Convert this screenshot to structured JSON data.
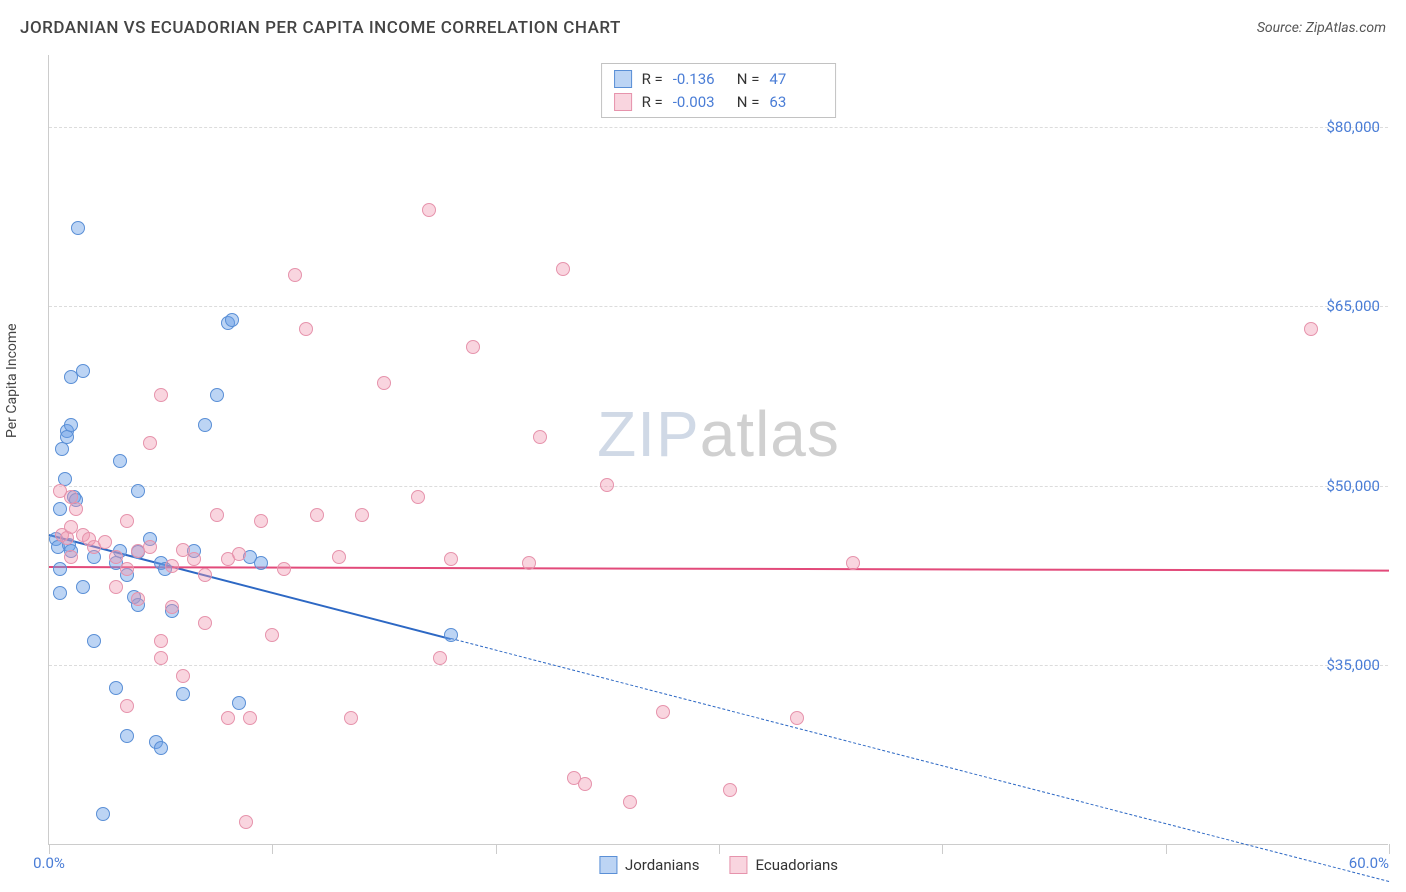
{
  "title": "JORDANIAN VS ECUADORIAN PER CAPITA INCOME CORRELATION CHART",
  "source_label": "Source: ZipAtlas.com",
  "yaxis": {
    "title": "Per Capita Income",
    "min": 20000,
    "max": 86000,
    "ticks": [
      {
        "v": 80000,
        "label": "$80,000"
      },
      {
        "v": 65000,
        "label": "$65,000"
      },
      {
        "v": 50000,
        "label": "$50,000"
      },
      {
        "v": 35000,
        "label": "$35,000"
      }
    ],
    "grid_color": "#dcdcdc"
  },
  "xaxis": {
    "min": 0,
    "max": 60,
    "ticks_at": [
      0,
      10,
      20,
      30,
      40,
      50,
      60
    ],
    "label_left": "0.0%",
    "label_right": "60.0%"
  },
  "series": [
    {
      "name": "Jordanians",
      "fill": "rgba(106,160,230,0.45)",
      "stroke": "#5a8fd6",
      "marker_radius": 7,
      "trend": {
        "y_at_xmin": 46000,
        "y_at_xmax": 17000,
        "solid_until_x": 18,
        "color": "#2d68c4"
      },
      "stats": {
        "R": "-0.136",
        "N": "47"
      },
      "points": [
        [
          0.3,
          45500
        ],
        [
          0.4,
          44800
        ],
        [
          0.5,
          43000
        ],
        [
          0.5,
          48000
        ],
        [
          0.6,
          53000
        ],
        [
          0.7,
          50500
        ],
        [
          0.8,
          54500
        ],
        [
          0.8,
          54000
        ],
        [
          0.9,
          45000
        ],
        [
          1.0,
          55000
        ],
        [
          1.1,
          49000
        ],
        [
          1.0,
          59000
        ],
        [
          1.0,
          44500
        ],
        [
          1.5,
          41500
        ],
        [
          1.2,
          48700
        ],
        [
          1.3,
          71500
        ],
        [
          1.5,
          59500
        ],
        [
          0.5,
          41000
        ],
        [
          2.0,
          44000
        ],
        [
          2.0,
          37000
        ],
        [
          2.4,
          22500
        ],
        [
          3.0,
          33000
        ],
        [
          3.0,
          43500
        ],
        [
          3.2,
          44500
        ],
        [
          3.5,
          42500
        ],
        [
          3.5,
          29000
        ],
        [
          3.8,
          40600
        ],
        [
          4.0,
          40000
        ],
        [
          4.0,
          44400
        ],
        [
          4.5,
          45500
        ],
        [
          4.8,
          28500
        ],
        [
          5.0,
          28000
        ],
        [
          5.0,
          43500
        ],
        [
          5.2,
          43000
        ],
        [
          5.5,
          39500
        ],
        [
          6.0,
          32500
        ],
        [
          6.5,
          44500
        ],
        [
          7.0,
          55000
        ],
        [
          7.5,
          57500
        ],
        [
          8.0,
          63500
        ],
        [
          8.2,
          63800
        ],
        [
          8.5,
          31800
        ],
        [
          9.0,
          44000
        ],
        [
          9.5,
          43500
        ],
        [
          18.0,
          37500
        ],
        [
          4.0,
          49500
        ],
        [
          3.2,
          52000
        ]
      ]
    },
    {
      "name": "Ecuadorians",
      "fill": "rgba(240,150,175,0.40)",
      "stroke": "#e693ac",
      "marker_radius": 7,
      "trend": {
        "y_at_xmin": 43300,
        "y_at_xmax": 43000,
        "solid_until_x": 60,
        "color": "#e24a7a"
      },
      "stats": {
        "R": "-0.003",
        "N": "63"
      },
      "points": [
        [
          0.5,
          49500
        ],
        [
          0.6,
          45800
        ],
        [
          0.8,
          45600
        ],
        [
          1.0,
          46500
        ],
        [
          1.0,
          49000
        ],
        [
          1.0,
          44000
        ],
        [
          1.2,
          48000
        ],
        [
          1.5,
          45800
        ],
        [
          1.8,
          45500
        ],
        [
          2.0,
          44800
        ],
        [
          2.5,
          45200
        ],
        [
          3.0,
          44000
        ],
        [
          3.0,
          41500
        ],
        [
          3.5,
          43000
        ],
        [
          3.5,
          47000
        ],
        [
          3.5,
          31500
        ],
        [
          4.0,
          40500
        ],
        [
          4.0,
          44500
        ],
        [
          4.5,
          44800
        ],
        [
          5.0,
          35500
        ],
        [
          5.0,
          57500
        ],
        [
          5.0,
          37000
        ],
        [
          5.5,
          43200
        ],
        [
          5.5,
          39800
        ],
        [
          6.0,
          34000
        ],
        [
          6.0,
          44600
        ],
        [
          6.5,
          43800
        ],
        [
          7.0,
          38500
        ],
        [
          7.0,
          42500
        ],
        [
          7.5,
          47500
        ],
        [
          8.0,
          30500
        ],
        [
          8.0,
          43800
        ],
        [
          8.5,
          44200
        ],
        [
          8.8,
          21800
        ],
        [
          9.0,
          30500
        ],
        [
          9.5,
          47000
        ],
        [
          10.0,
          37500
        ],
        [
          10.5,
          43000
        ],
        [
          11.0,
          67500
        ],
        [
          11.5,
          63000
        ],
        [
          12.0,
          47500
        ],
        [
          13.0,
          44000
        ],
        [
          13.5,
          30500
        ],
        [
          14.0,
          47500
        ],
        [
          15.0,
          58500
        ],
        [
          16.5,
          49000
        ],
        [
          17.0,
          73000
        ],
        [
          17.5,
          35500
        ],
        [
          18.0,
          43800
        ],
        [
          19.0,
          61500
        ],
        [
          21.5,
          43500
        ],
        [
          22.0,
          54000
        ],
        [
          23.0,
          68000
        ],
        [
          23.5,
          25500
        ],
        [
          24.0,
          25000
        ],
        [
          25.0,
          50000
        ],
        [
          26.0,
          23500
        ],
        [
          27.5,
          31000
        ],
        [
          30.5,
          24500
        ],
        [
          33.5,
          30500
        ],
        [
          36.0,
          43500
        ],
        [
          56.5,
          63000
        ],
        [
          4.5,
          53500
        ]
      ]
    }
  ],
  "watermark": {
    "part1": "ZIP",
    "part2": "atlas"
  },
  "legend_bottom": [
    "Jordanians",
    "Ecuadorians"
  ],
  "colors": {
    "axis_text": "#4a7dd6",
    "title_text": "#444444",
    "border": "#cccccc"
  }
}
